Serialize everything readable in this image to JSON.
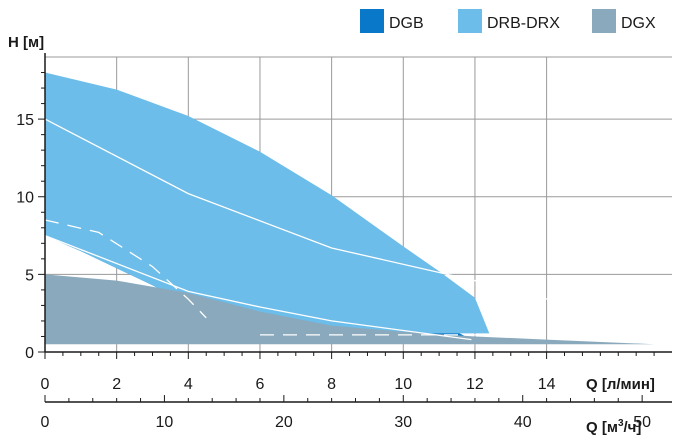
{
  "chart_data": {
    "type": "area",
    "ylabel": "H [м]",
    "xlabel": "Q [л/мин]",
    "x2label_prefix": "Q [м",
    "x2label_sup": "3",
    "x2label_suffix": "/ч]",
    "xlim": [
      0,
      17.5
    ],
    "ylim": [
      0,
      19
    ],
    "x_ticks": [
      "0",
      "2",
      "4",
      "6",
      "8",
      "10",
      "12",
      "14"
    ],
    "x_tick_values": [
      0,
      2,
      4,
      6,
      8,
      10,
      12,
      14
    ],
    "y_ticks": [
      "0",
      "5",
      "10",
      "15"
    ],
    "y_tick_values": [
      0,
      5,
      10,
      15
    ],
    "x2_ticks": [
      "0",
      "10",
      "20",
      "30",
      "40",
      "50"
    ],
    "x2_tick_values": [
      0,
      10,
      20,
      30,
      40,
      50
    ],
    "x2_per_x": 0.3,
    "grid": true,
    "legend_position": "top-right",
    "series": [
      {
        "name": "DGB",
        "color": "#0a78c8",
        "x": [
          0,
          0,
          1,
          2,
          3,
          4,
          5,
          6,
          7,
          8,
          9,
          10,
          11,
          11.9,
          11.9,
          6.0,
          6.0,
          5.0,
          4.0,
          3.0,
          2.0,
          1.0,
          0
        ],
        "y": [
          7.5,
          15,
          13.6,
          12.2,
          10.9,
          9.6,
          8.6,
          7.6,
          6.5,
          5.4,
          4.3,
          3.1,
          1.9,
          0.8,
          0.6,
          0.6,
          0.8,
          1.9,
          3.1,
          4.3,
          5.4,
          6.5,
          7.5
        ]
      },
      {
        "name": "DRB-DRX",
        "color": "#6cbde9",
        "x": [
          0,
          0,
          2,
          4,
          6,
          8,
          10,
          11,
          12,
          12.4,
          12.4,
          11,
          10,
          8,
          6,
          4.6,
          4.5,
          3.9,
          3.0,
          2.0,
          1.0,
          0
        ],
        "y": [
          7.5,
          18,
          16.9,
          15.2,
          12.9,
          10.1,
          6.8,
          5.2,
          3.5,
          1.2,
          1.2,
          1.2,
          1.2,
          1.2,
          1.2,
          1.2,
          1.2,
          3.1,
          4.3,
          5.4,
          6.5,
          7.5
        ]
      },
      {
        "name": "DGX",
        "color": "#8aa9bd",
        "x": [
          0,
          2,
          4,
          6,
          8,
          10,
          12,
          14,
          16,
          17.0,
          17.0,
          16,
          14,
          12,
          10,
          8,
          6,
          4,
          2,
          0
        ],
        "y": [
          5.0,
          4.6,
          3.8,
          2.6,
          1.7,
          1.3,
          1.0,
          0.8,
          0.6,
          0.5,
          0.5,
          0.5,
          0.5,
          0.5,
          0.5,
          0.5,
          0.5,
          0.5,
          0.5,
          0.5
        ]
      }
    ],
    "overlay_lines": [
      {
        "style": "solid",
        "color": "#ffffff",
        "x": [
          0,
          4,
          8,
          12,
          14.2
        ],
        "y": [
          15,
          10.2,
          6.7,
          4.6,
          3.3
        ]
      },
      {
        "style": "solid",
        "color": "#ffffff",
        "x": [
          0,
          4,
          6,
          8,
          11.9
        ],
        "y": [
          7.5,
          3.9,
          2.9,
          2.0,
          0.8
        ]
      },
      {
        "style": "dashed",
        "color": "#ffffff",
        "x": [
          0,
          1.5,
          3.0,
          4.0,
          4.5
        ],
        "y": [
          8.5,
          7.7,
          5.5,
          3.4,
          2.2
        ]
      },
      {
        "style": "dashed",
        "color": "#ffffff",
        "x": [
          6.0,
          13.2,
          13.9
        ],
        "y": [
          1.1,
          1.1,
          2.6
        ]
      }
    ]
  }
}
